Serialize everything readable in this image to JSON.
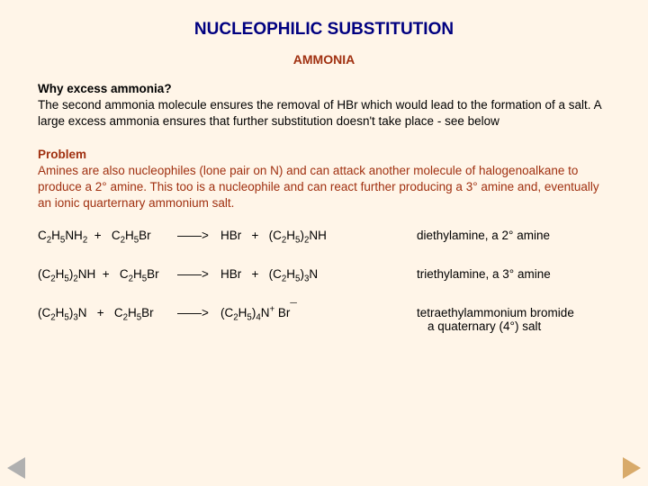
{
  "colors": {
    "background": "#fff5e8",
    "title": "#000080",
    "accent": "#a03010",
    "body": "#000000",
    "nav_prev": "#b0b0b0",
    "nav_next": "#d8aa6a"
  },
  "typography": {
    "title_fontsize": 19,
    "subtitle_fontsize": 14,
    "body_fontsize": 13.5,
    "font_family": "Arial"
  },
  "title": "NUCLEOPHILIC SUBSTITUTION",
  "subtitle": "AMMONIA",
  "why": {
    "heading": "Why excess ammonia?",
    "body": "The second ammonia molecule ensures the removal of HBr which would lead to the formation of a salt.  A large excess ammonia ensures that further substitution doesn't take place - see below"
  },
  "problem": {
    "heading": "Problem",
    "body": "Amines are also nucleophiles (lone pair on N) and can attack another molecule of halogenoalkane to produce a 2° amine.  This too is a nucleophile and can react further producing a 3° amine  and, eventually an ionic quarternary ammonium salt."
  },
  "arrow": "——>",
  "eq1": {
    "lhs": "C2H5NH2  +   C2H5Br",
    "rhs": "HBr   +   (C2H5)2NH",
    "note": "diethylamine,  a 2° amine"
  },
  "eq2": {
    "lhs": "(C2H5)2NH  +   C2H5Br",
    "rhs": "HBr   +   (C2H5)3N",
    "note": "triethylamine,  a 3° amine"
  },
  "eq3": {
    "lhs": "(C2H5)3N   +   C2H5Br",
    "rhs": "(C2H5)4N+ Br¯",
    "note_line1": "tetraethylammonium bromide",
    "note_line2": "a quaternary (4°) salt"
  },
  "nav": {
    "prev": "previous-slide",
    "next": "next-slide"
  }
}
